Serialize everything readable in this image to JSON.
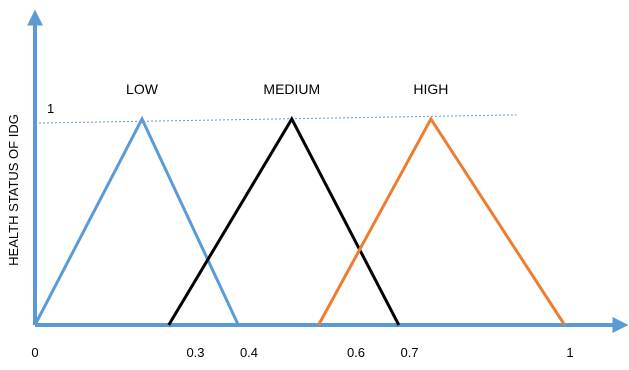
{
  "chart_data": {
    "type": "line",
    "title": "",
    "xlabel": "",
    "ylabel": "HEALTH STATUS OF  IDG",
    "xlim": [
      0,
      1.05
    ],
    "ylim": [
      0,
      1
    ],
    "y_tick_labels": [
      {
        "value": 1,
        "label": "1"
      }
    ],
    "x_tick_labels": [
      {
        "value": 0,
        "label": "0"
      },
      {
        "value": 0.3,
        "label": "0.3"
      },
      {
        "value": 0.4,
        "label": "0.4"
      },
      {
        "value": 0.6,
        "label": "0.6"
      },
      {
        "value": 0.7,
        "label": "0.7"
      },
      {
        "value": 1,
        "label": "1"
      }
    ],
    "reference_line": {
      "style": "dashed",
      "color": "#5b9bd5",
      "x": [
        0,
        0.9
      ],
      "y": [
        0.98,
        1.02
      ]
    },
    "series": [
      {
        "name": "LOW",
        "color": "#5b9bd5",
        "points": [
          [
            0,
            0
          ],
          [
            0.2,
            1
          ],
          [
            0.38,
            0
          ]
        ]
      },
      {
        "name": "MEDIUM",
        "color": "#000000",
        "points": [
          [
            0.25,
            0
          ],
          [
            0.48,
            1
          ],
          [
            0.68,
            0
          ]
        ]
      },
      {
        "name": "HIGH",
        "color": "#ed7d31",
        "points": [
          [
            0.53,
            0
          ],
          [
            0.74,
            1
          ],
          [
            0.99,
            0
          ]
        ]
      }
    ],
    "axis_color": "#5b9bd5"
  }
}
